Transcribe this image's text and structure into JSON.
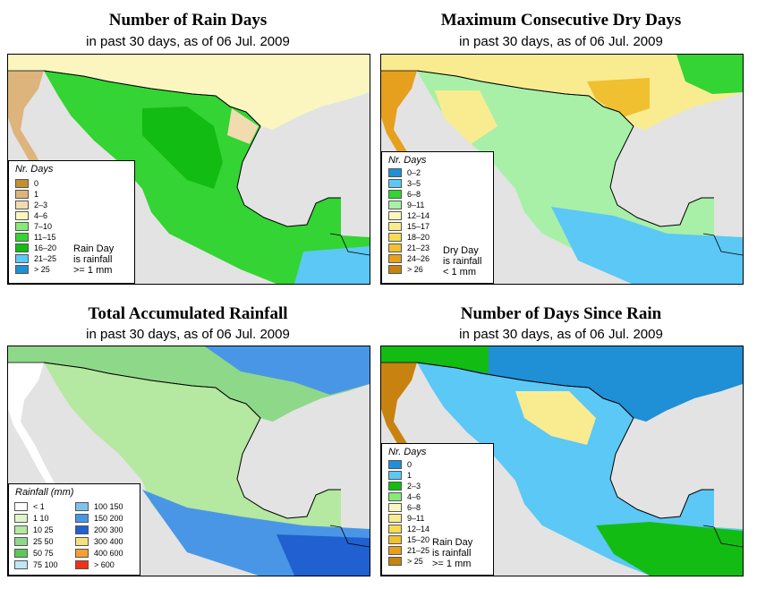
{
  "panels": [
    {
      "title": "Number of Rain Days",
      "subtitle": "in past 30 days, as of  06 Jul. 2009",
      "legend": {
        "title": "Nr. Days",
        "items": [
          {
            "label": "0",
            "color": "#c68f2d"
          },
          {
            "label": "1",
            "color": "#ddb47c"
          },
          {
            "label": "2–3",
            "color": "#f0dcae"
          },
          {
            "label": "4–6",
            "color": "#fbf6c0"
          },
          {
            "label": "7–10",
            "color": "#88e878"
          },
          {
            "label": "11–15",
            "color": "#33d433"
          },
          {
            "label": "16–20",
            "color": "#12bc12"
          },
          {
            "label": "21–25",
            "color": "#5bc8f5"
          },
          {
            "label": "> 25",
            "color": "#1f8fd6"
          }
        ],
        "note": [
          "Rain Day",
          "is rainfall",
          ">= 1 mm"
        ]
      }
    },
    {
      "title": "Maximum Consecutive Dry Days",
      "subtitle": "in past 30 days, as of  06 Jul. 2009",
      "legend": {
        "title": "Nr. Days",
        "items": [
          {
            "label": "0–2",
            "color": "#1f8fd6"
          },
          {
            "label": "3–5",
            "color": "#5bc8f5"
          },
          {
            "label": "6–8",
            "color": "#33d433"
          },
          {
            "label": "9–11",
            "color": "#a8f0a8"
          },
          {
            "label": "12–14",
            "color": "#fbf6c0"
          },
          {
            "label": "15–17",
            "color": "#f9ec90"
          },
          {
            "label": "18–20",
            "color": "#f5dc50"
          },
          {
            "label": "21–23",
            "color": "#f0c030"
          },
          {
            "label": "24–26",
            "color": "#e6a01e"
          },
          {
            "label": "> 26",
            "color": "#c8820f"
          }
        ],
        "note": [
          "Dry Day",
          "is rainfall",
          "< 1 mm"
        ]
      }
    },
    {
      "title": "Total Accumulated Rainfall",
      "subtitle": "in past 30 days, as of  06 Jul. 2009",
      "legend": {
        "title": "Rainfall (mm)",
        "items": [
          {
            "label": "<  1",
            "color": "#ffffff"
          },
          {
            "label": "1    10",
            "color": "#dff5c8"
          },
          {
            "label": "10    25",
            "color": "#b5e8a0"
          },
          {
            "label": "25    50",
            "color": "#8ed88a"
          },
          {
            "label": "50    75",
            "color": "#5bc85b"
          },
          {
            "label": "75   100",
            "color": "#bfe6f5"
          },
          {
            "label": "100   150",
            "color": "#7cc3ee"
          },
          {
            "label": "150   200",
            "color": "#4a96e6"
          },
          {
            "label": "200   300",
            "color": "#2060d0"
          },
          {
            "label": "300   400",
            "color": "#f5e080"
          },
          {
            "label": "400   600",
            "color": "#f5a030"
          },
          {
            "label": "> 600",
            "color": "#f03018"
          }
        ]
      }
    },
    {
      "title": "Number of Days Since Rain",
      "subtitle": "in past 30 days, as of  06 Jul. 2009",
      "legend": {
        "title": "Nr. Days",
        "items": [
          {
            "label": "0",
            "color": "#1f8fd6"
          },
          {
            "label": "1",
            "color": "#5bc8f5"
          },
          {
            "label": "2–3",
            "color": "#12bc12"
          },
          {
            "label": "4–6",
            "color": "#88e878"
          },
          {
            "label": "6–8",
            "color": "#fbf6c0"
          },
          {
            "label": "9–11",
            "color": "#f9ec90"
          },
          {
            "label": "12–14",
            "color": "#f5dc50"
          },
          {
            "label": "15–20",
            "color": "#f0c030"
          },
          {
            "label": "21–25",
            "color": "#e6a01e"
          },
          {
            "label": "> 25",
            "color": "#c8820f"
          }
        ],
        "note": [
          "Rain Day",
          "is rainfall",
          ">= 1 mm"
        ]
      }
    }
  ]
}
